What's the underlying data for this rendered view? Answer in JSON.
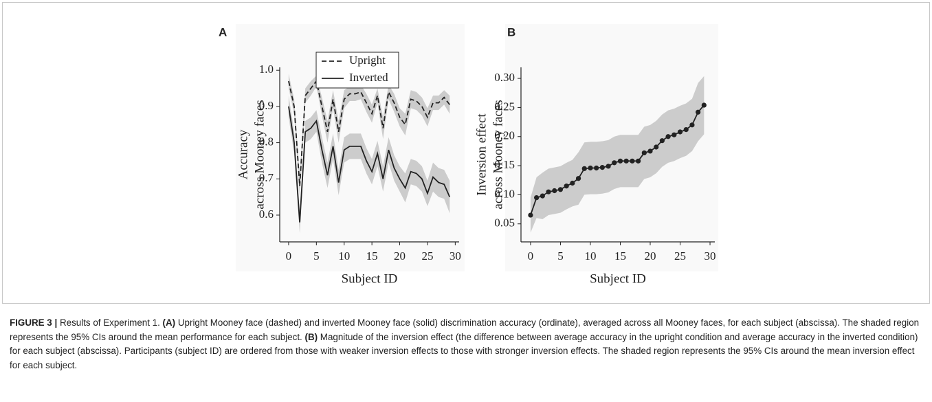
{
  "chart_data": [
    {
      "type": "line",
      "panel": "A",
      "xlabel": "Subject ID",
      "ylabel": [
        "Accuracy",
        "across Mooney faces"
      ],
      "x": [
        0,
        1,
        2,
        3,
        4,
        5,
        6,
        7,
        8,
        9,
        10,
        11,
        12,
        13,
        14,
        15,
        16,
        17,
        18,
        19,
        20,
        21,
        22,
        23,
        24,
        25,
        26,
        27,
        28,
        29
      ],
      "series": [
        {
          "name": "Upright",
          "color": "#222222",
          "linestyle": "dashed",
          "values": [
            0.97,
            0.9,
            0.68,
            0.93,
            0.95,
            0.97,
            0.9,
            0.83,
            0.92,
            0.83,
            0.92,
            0.935,
            0.935,
            0.94,
            0.91,
            0.88,
            0.93,
            0.84,
            0.94,
            0.91,
            0.87,
            0.85,
            0.92,
            0.915,
            0.9,
            0.87,
            0.91,
            0.91,
            0.925,
            0.905
          ],
          "ci": [
            0.02,
            0.02,
            0.03,
            0.02,
            0.02,
            0.015,
            0.025,
            0.03,
            0.025,
            0.03,
            0.025,
            0.02,
            0.02,
            0.02,
            0.025,
            0.025,
            0.02,
            0.03,
            0.02,
            0.025,
            0.025,
            0.03,
            0.025,
            0.025,
            0.025,
            0.025,
            0.02,
            0.02,
            0.02,
            0.025
          ]
        },
        {
          "name": "Inverted",
          "color": "#222222",
          "linestyle": "solid",
          "values": [
            0.9,
            0.8,
            0.58,
            0.83,
            0.84,
            0.86,
            0.78,
            0.71,
            0.79,
            0.69,
            0.78,
            0.79,
            0.79,
            0.79,
            0.75,
            0.72,
            0.77,
            0.7,
            0.78,
            0.73,
            0.7,
            0.675,
            0.72,
            0.715,
            0.7,
            0.66,
            0.705,
            0.69,
            0.685,
            0.65
          ],
          "ci": [
            0.03,
            0.03,
            0.03,
            0.03,
            0.03,
            0.03,
            0.035,
            0.035,
            0.035,
            0.035,
            0.035,
            0.035,
            0.035,
            0.035,
            0.035,
            0.035,
            0.035,
            0.035,
            0.035,
            0.035,
            0.035,
            0.04,
            0.035,
            0.035,
            0.035,
            0.035,
            0.04,
            0.04,
            0.04,
            0.045
          ]
        }
      ],
      "band_color": "#cccccc",
      "xlim": [
        -1.6,
        30.7
      ],
      "ylim": [
        0.526,
        1.008
      ],
      "xticks": [
        0,
        5,
        10,
        15,
        20,
        25,
        30
      ],
      "yticks": [
        0.6,
        0.7,
        0.8,
        0.9,
        {
          "value": 1,
          "label": "1.0"
        }
      ],
      "legend": "top"
    },
    {
      "type": "line",
      "panel": "B",
      "xlabel": "Subject ID",
      "ylabel": [
        "Inversion effect",
        "across Mooney faces"
      ],
      "markers": true,
      "x": [
        0,
        1,
        2,
        3,
        4,
        5,
        6,
        7,
        8,
        9,
        10,
        11,
        12,
        13,
        14,
        15,
        16,
        17,
        18,
        19,
        20,
        21,
        22,
        23,
        24,
        25,
        26,
        27,
        28,
        29
      ],
      "series": [
        {
          "color": "#222222",
          "linestyle": "solid",
          "values": [
            0.065,
            0.095,
            0.098,
            0.105,
            0.107,
            0.109,
            0.115,
            0.12,
            0.128,
            0.145,
            0.146,
            0.146,
            0.147,
            0.149,
            0.155,
            0.158,
            0.158,
            0.158,
            0.158,
            0.172,
            0.175,
            0.182,
            0.193,
            0.2,
            0.203,
            0.208,
            0.212,
            0.22,
            0.242,
            0.254
          ],
          "ci": [
            0.03,
            0.035,
            0.04,
            0.04,
            0.04,
            0.04,
            0.04,
            0.04,
            0.045,
            0.045,
            0.045,
            0.045,
            0.045,
            0.045,
            0.045,
            0.045,
            0.045,
            0.045,
            0.045,
            0.045,
            0.045,
            0.045,
            0.045,
            0.045,
            0.045,
            0.045,
            0.045,
            0.045,
            0.05,
            0.05
          ]
        }
      ],
      "band_color": "#cccccc",
      "xlim": [
        -1.6,
        30.8
      ],
      "ylim": [
        0.019,
        0.319
      ],
      "xticks": [
        0,
        5,
        10,
        15,
        20,
        25,
        30
      ],
      "yticks": [
        0.05,
        {
          "value": 0.1,
          "label": "0.10"
        },
        0.15,
        {
          "value": 0.2,
          "label": "0.20"
        },
        0.25,
        {
          "value": 0.3,
          "label": "0.30"
        }
      ]
    }
  ],
  "caption": {
    "parts": [
      {
        "text": "FIGURE 3 |",
        "bold": true
      },
      {
        "text": " Results of Experiment 1. "
      },
      {
        "text": "(A)",
        "bold": true
      },
      {
        "text": " Upright Mooney face (dashed) and inverted Mooney face (solid) discrimination accuracy (ordinate), averaged across all Mooney faces, for each subject (abscissa). The shaded region represents the 95% CIs around the mean performance for each subject. "
      },
      {
        "text": "(B)",
        "bold": true
      },
      {
        "text": " Magnitude of the inversion effect (the difference between average accuracy in the upright condition and average accuracy in the inverted condition) for each subject (abscissa). Participants (subject ID) are ordered from those with weaker inversion effects to those with stronger inversion effects. The shaded region represents the 95% CIs around the mean inversion effect for each subject."
      }
    ]
  }
}
